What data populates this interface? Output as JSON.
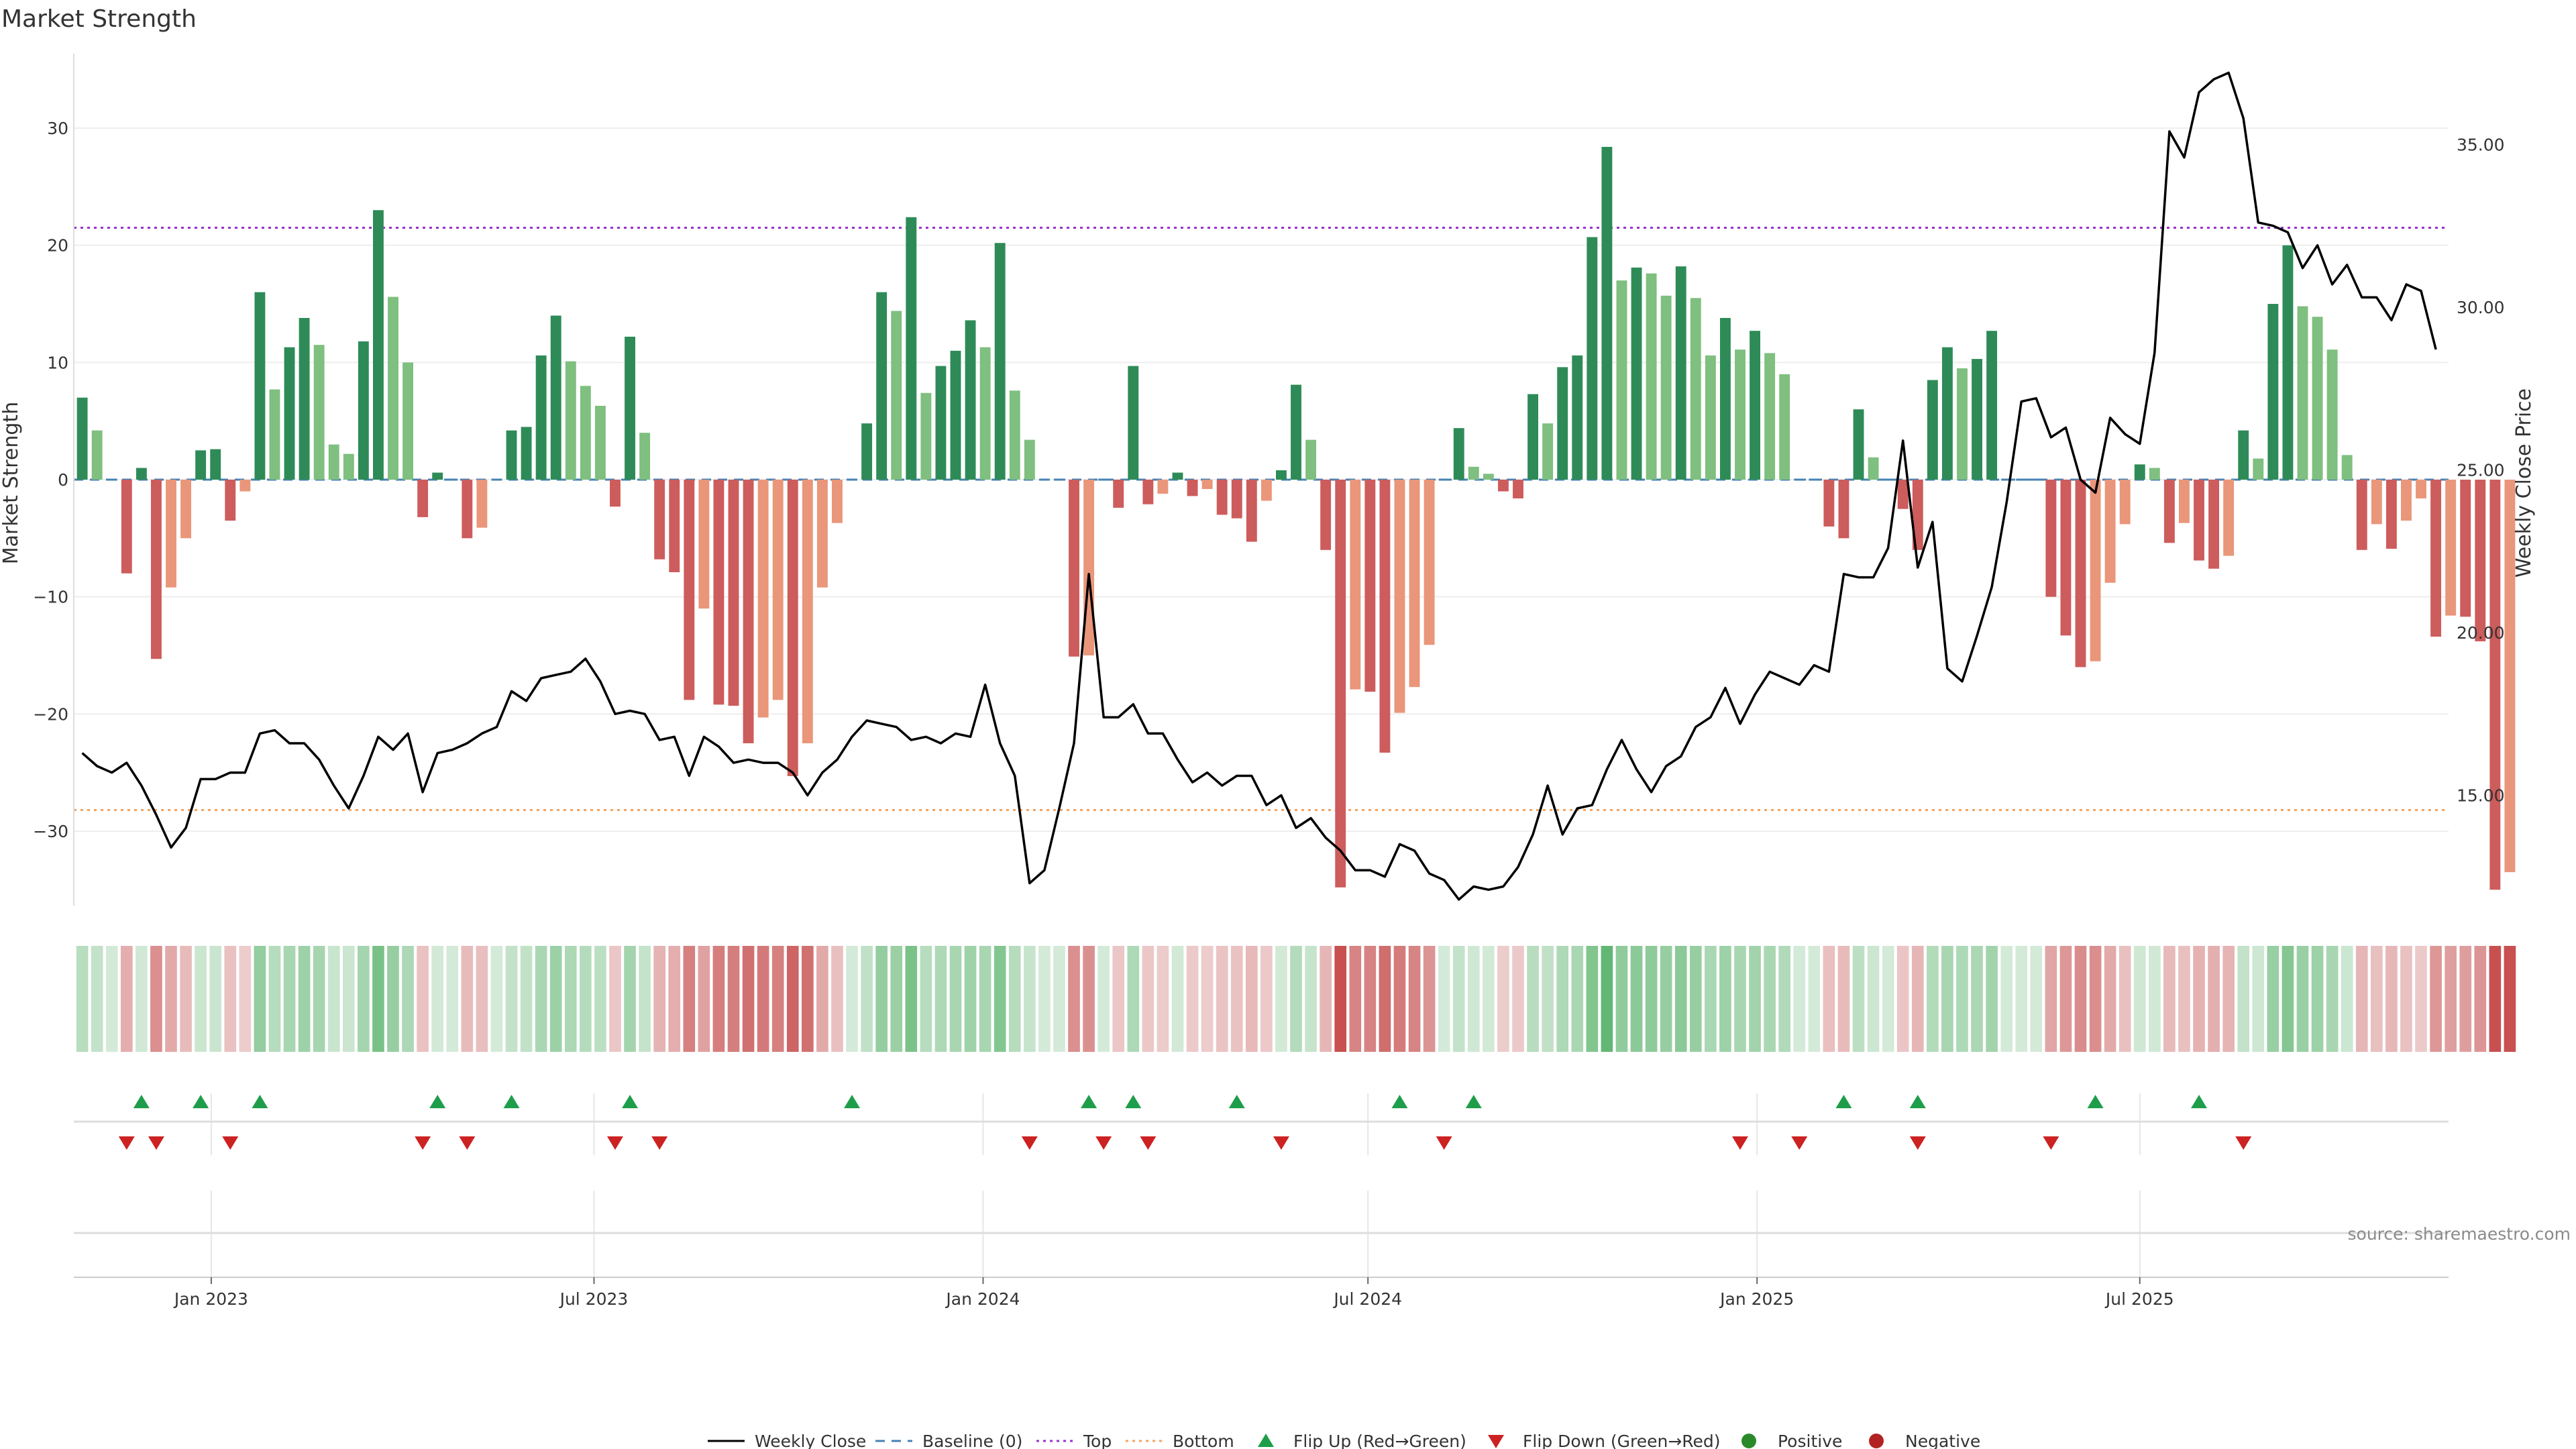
{
  "chart_data": {
    "type": "bar",
    "title": "Market Strength",
    "ylabel": "Market Strength",
    "y2label": "Weekly Close Price",
    "ylim": [
      -37.5,
      37.5
    ],
    "y2lim": [
      11.2,
      38.2
    ],
    "yticks": [
      -30,
      -20,
      -10,
      0,
      10,
      20,
      30
    ],
    "y2ticks": [
      "15.00",
      "20.00",
      "25.00",
      "30.00",
      "35.00"
    ],
    "x_start": "2022-10-28",
    "x_end": "2025-11-24",
    "week_start": "2022-11-01",
    "xticks": [
      {
        "date": "2023-01-01",
        "label": "Jan 2023"
      },
      {
        "date": "2023-07-01",
        "label": "Jul 2023"
      },
      {
        "date": "2024-01-01",
        "label": "Jan 2024"
      },
      {
        "date": "2024-07-01",
        "label": "Jul 2024"
      },
      {
        "date": "2025-01-01",
        "label": "Jan 2025"
      },
      {
        "date": "2025-07-01",
        "label": "Jul 2025"
      }
    ],
    "top_level": 21.5,
    "bottom_level": -28.2,
    "grid": true,
    "legend_position": "bottom",
    "source": "source: sharemaestro.com",
    "strength": [
      7,
      4.2,
      0,
      -8,
      1,
      -15.3,
      -9.2,
      -5,
      2.5,
      2.6,
      -3.5,
      -1,
      16,
      7.7,
      11.3,
      13.8,
      11.5,
      3,
      2.2,
      11.8,
      23,
      15.6,
      10,
      -3.2,
      0.6,
      0,
      -5,
      -4.1,
      0,
      4.2,
      4.5,
      10.6,
      14,
      10.1,
      8,
      6.3,
      -2.3,
      12.2,
      4,
      -6.8,
      -7.9,
      -18.8,
      -11,
      -19.2,
      -19.3,
      -22.5,
      -20.3,
      -18.8,
      -25.3,
      -22.5,
      -9.2,
      -3.7,
      0,
      4.8,
      16,
      14.4,
      22.4,
      7.4,
      9.7,
      11,
      13.6,
      11.3,
      20.2,
      7.6,
      3.4,
      0,
      0,
      -15.1,
      -15,
      0,
      -2.4,
      9.7,
      -2.1,
      -1.2,
      0.6,
      -1.4,
      -0.8,
      -3,
      -3.3,
      -5.3,
      -1.8,
      0.8,
      8.1,
      3.4,
      -6,
      -34.8,
      -17.9,
      -18.1,
      -23.3,
      -19.9,
      -17.7,
      -14.1,
      0,
      4.4,
      1.1,
      0.5,
      -1,
      -1.6,
      7.3,
      4.8,
      9.6,
      10.6,
      20.7,
      28.4,
      17,
      18.1,
      17.6,
      15.7,
      18.2,
      15.5,
      10.6,
      13.8,
      11.1,
      12.7,
      10.8,
      9,
      0,
      0,
      -4,
      -5,
      6,
      1.9,
      0,
      -2.5,
      -6,
      8.5,
      11.3,
      9.5,
      10.3,
      12.7,
      0,
      0,
      0,
      -10,
      -13.3,
      -16,
      -15.5,
      -8.8,
      -3.8,
      1.3,
      1,
      -5.4,
      -3.7,
      -6.9,
      -7.6,
      -6.5,
      4.2,
      1.8,
      15,
      20,
      14.8,
      13.9,
      11.1,
      2.1,
      -6,
      -3.8,
      -5.9,
      -3.5,
      -1.6,
      -13.4,
      -11.6,
      -11.7,
      -13.8,
      -35,
      -33.5
    ],
    "close": [
      16.3,
      15.9,
      15.7,
      16,
      15.3,
      14.4,
      13.4,
      14,
      15.5,
      15.5,
      15.7,
      15.7,
      16.9,
      17,
      16.6,
      16.6,
      16.1,
      15.3,
      14.6,
      15.6,
      16.8,
      16.4,
      16.9,
      15.1,
      16.3,
      16.4,
      16.6,
      16.9,
      17.1,
      18.2,
      17.9,
      18.6,
      18.7,
      18.8,
      19.2,
      18.5,
      17.5,
      17.6,
      17.5,
      16.7,
      16.8,
      15.6,
      16.8,
      16.5,
      16,
      16.1,
      16,
      16,
      15.7,
      15,
      15.7,
      16.1,
      16.8,
      17.3,
      17.2,
      17.1,
      16.7,
      16.8,
      16.6,
      16.9,
      16.8,
      18.4,
      16.6,
      15.6,
      12.3,
      12.7,
      14.6,
      16.6,
      21.8,
      17.4,
      17.4,
      17.8,
      16.9,
      16.9,
      16.1,
      15.4,
      15.7,
      15.3,
      15.6,
      15.6,
      14.7,
      15,
      14,
      14.3,
      13.7,
      13.3,
      12.7,
      12.7,
      12.5,
      13.5,
      13.3,
      12.6,
      12.4,
      11.8,
      12.2,
      12.1,
      12.2,
      12.8,
      13.8,
      15.3,
      13.8,
      14.6,
      14.7,
      15.8,
      16.7,
      15.8,
      15.1,
      15.9,
      16.2,
      17.1,
      17.4,
      18.3,
      17.2,
      18.1,
      18.8,
      18.6,
      18.4,
      19,
      18.8,
      21.8,
      21.7,
      21.7,
      22.6,
      25.9,
      22,
      23.4,
      18.9,
      18.5,
      19.9,
      21.4,
      24,
      27.1,
      27.2,
      26,
      26.3,
      24.7,
      24.3,
      26.6,
      26.1,
      25.8,
      28.6,
      35.4,
      34.6,
      36.6,
      37,
      37.2,
      35.8,
      32.6,
      32.5,
      32.3,
      31.2,
      31.9,
      30.7,
      31.3,
      30.3,
      30.3,
      29.6,
      30.7,
      30.5,
      28.7
    ],
    "flip_up": [
      4,
      8,
      12,
      24,
      29,
      37,
      52,
      68,
      71,
      78,
      89,
      94,
      119,
      124,
      136,
      143
    ],
    "flip_down": [
      3,
      5,
      10,
      23,
      26,
      36,
      39,
      64,
      69,
      72,
      81,
      92,
      112,
      116,
      124,
      133,
      146
    ],
    "legend": {
      "weekly_close": "Weekly Close",
      "baseline": "Baseline (0)",
      "top": "Top",
      "bottom": "Bottom",
      "flip_up": "Flip Up (Red→Green)",
      "flip_down": "Flip Down (Green→Red)",
      "positive": "Positive",
      "negative": "Negative"
    },
    "colors": {
      "positive_strong": "#2e8b57",
      "positive_light": "#7fbf7f",
      "negative_strong": "#cd5c5c",
      "negative_light": "#e9967a",
      "close_line": "#000000",
      "baseline": "#4682b4",
      "top": "#9932cc",
      "bottom": "#f4a460",
      "flip_up": "#1e9e4a",
      "flip_down": "#cc2222",
      "positive_dot": "#2a8a2a",
      "negative_dot": "#b22222"
    }
  }
}
